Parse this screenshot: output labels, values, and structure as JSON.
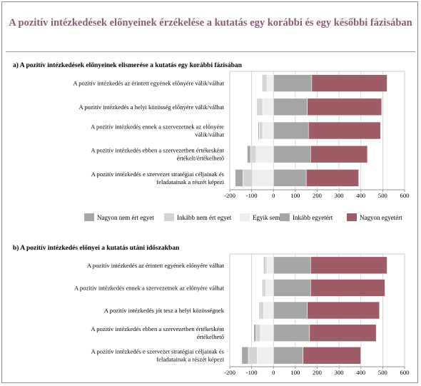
{
  "title": "A pozitív intézkedések előnyeinek érzékelése a kutatás egy korábbi és egy későbbi fázisában",
  "legend": [
    {
      "label": "Nagyon nem ért egyet",
      "color": "#a6a6a6"
    },
    {
      "label": "Inkább nem ért egyet",
      "color": "#d4d4d4"
    },
    {
      "label": "Egyik sem",
      "color": "#eeeeee"
    },
    {
      "label": "Inkább egyetért",
      "color": "#a6a6a6"
    },
    {
      "label": "Nagyon egyetért",
      "color": "#9e5d66"
    }
  ],
  "chart_data": [
    {
      "type": "bar",
      "orientation": "horizontal",
      "stacked": "diverging",
      "title": "a) A pozitív intézkedések előnyeinek elismerése a kutatás egy korábbi fázisában",
      "categories": [
        "A pozitív intézkedés az érintett egyének előnyére válik/válhat",
        "A pozitív intézkedés a helyi közösség előnyére válik/válhat",
        "A pozitív intézkedés ennek a szervezetnek az előnyére válik/válhat",
        "A pozitív intézkedés ebben a szervezetben értékesként értékelt/értékelhető",
        "A pozitív intézkedés e szervezet stratégiai céljainak és feladatainak a részét képezi"
      ],
      "series": [
        {
          "name": "Nagyon nem ért egyet",
          "values": [
            -5,
            -5,
            -5,
            -15,
            -35
          ]
        },
        {
          "name": "Inkább nem ért egyet",
          "values": [
            -15,
            -20,
            -15,
            -25,
            -45
          ]
        },
        {
          "name": "Egyik sem",
          "values": [
            -30,
            -50,
            -50,
            -80,
            -95
          ]
        },
        {
          "name": "Inkább egyetért",
          "values": [
            175,
            155,
            160,
            170,
            150
          ]
        },
        {
          "name": "Nagyon egyetért",
          "values": [
            345,
            340,
            330,
            260,
            240
          ]
        }
      ],
      "xticks": [
        -200,
        -100,
        0,
        100,
        200,
        300,
        400,
        500,
        600
      ],
      "xlim": [
        -200,
        600
      ],
      "grid": true,
      "legend_position": "bottom"
    },
    {
      "type": "bar",
      "orientation": "horizontal",
      "stacked": "diverging",
      "title": "b) A pozitív intézkedés előnyei a kutatás utáni időszakban",
      "categories": [
        "A pozitív intézkedés az érintett egyének előnyére válhat",
        "A pozitív intézkedés ennek a szervezetnek az előnyére válhat",
        "A pozitív intézkedés jót tesz a helyi közösségnek",
        "A pozitív intézkedés ebben a szervezetben értékesként értékelhető",
        "A pozitív intézkedés e szervezet stratégiai céljainak és feladatainak a részét képezi"
      ],
      "series": [
        {
          "name": "Nagyon nem ért egyet",
          "values": [
            -5,
            -5,
            -5,
            -10,
            -30
          ]
        },
        {
          "name": "Inkább nem ért egyet",
          "values": [
            -10,
            -10,
            -15,
            -20,
            -40
          ]
        },
        {
          "name": "Egyik sem",
          "values": [
            -30,
            -35,
            -45,
            -60,
            -75
          ]
        },
        {
          "name": "Inkább egyetért",
          "values": [
            170,
            170,
            155,
            165,
            135
          ]
        },
        {
          "name": "Nagyon egyetért",
          "values": [
            350,
            340,
            330,
            305,
            265
          ]
        }
      ],
      "xticks": [
        -200,
        -100,
        0,
        100,
        200,
        300,
        400,
        500,
        600
      ],
      "xlim": [
        -200,
        600
      ],
      "grid": true
    }
  ]
}
